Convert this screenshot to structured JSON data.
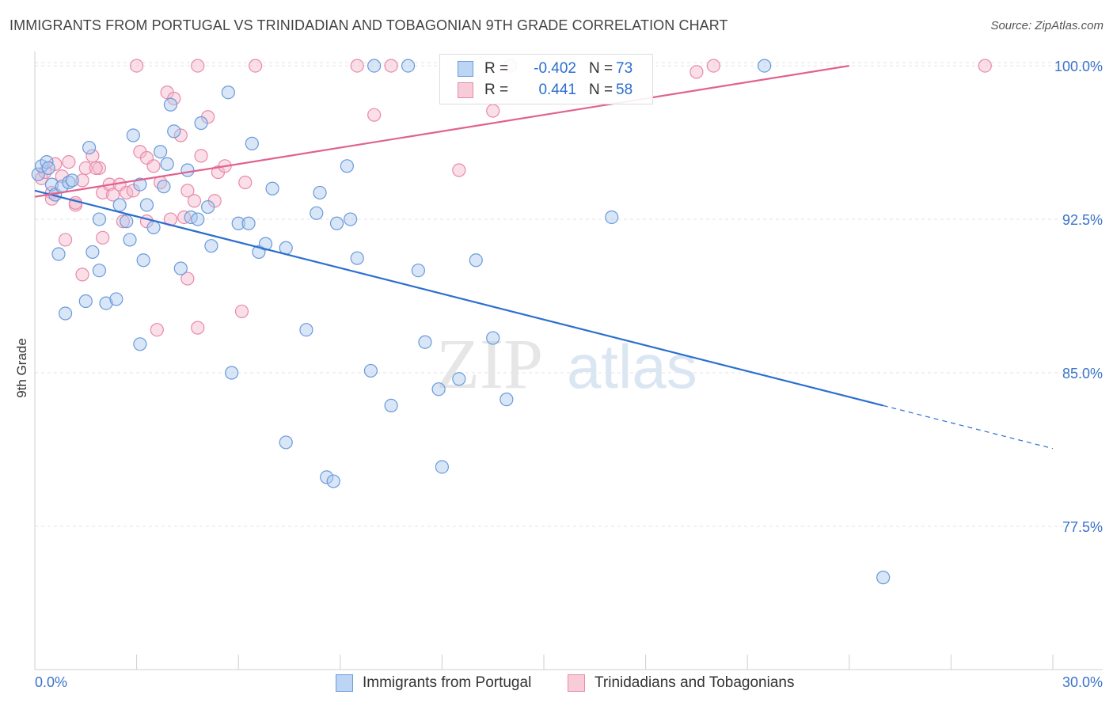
{
  "header": {
    "title": "IMMIGRANTS FROM PORTUGAL VS TRINIDADIAN AND TOBAGONIAN 9TH GRADE CORRELATION CHART",
    "source": "Source: ZipAtlas.com"
  },
  "watermark": {
    "zip": "ZIP",
    "atlas": "atlas"
  },
  "legend_top": {
    "r_label": "R =",
    "n_label": "N =",
    "series": [
      {
        "r": "-0.402",
        "n": "73"
      },
      {
        "r": "0.441",
        "n": "58"
      }
    ]
  },
  "legend_bottom": [
    {
      "label": "Immigrants from Portugal"
    },
    {
      "label": "Trinidadians and Tobagonians"
    }
  ],
  "colors": {
    "blue_fill": "#a8c8f0",
    "blue_stroke": "#6a9ad8",
    "blue_line": "#2b6fcf",
    "pink_fill": "#f5b7cb",
    "pink_stroke": "#e88aa8",
    "pink_line": "#e0628f",
    "axis_text": "#3b73c8"
  },
  "chart_data": {
    "type": "scatter",
    "title": "IMMIGRANTS FROM PORTUGAL VS TRINIDADIAN AND TOBAGONIAN 9TH GRADE CORRELATION CHART",
    "xlabel": "",
    "ylabel": "9th Grade",
    "xlim": [
      0,
      30
    ],
    "ylim": [
      70.5,
      100.7
    ],
    "x_tick_labels": [
      "0.0%",
      "30.0%"
    ],
    "y_ticks": [
      {
        "value": 100.0,
        "label": "100.0%"
      },
      {
        "value": 92.5,
        "label": "92.5%"
      },
      {
        "value": 85.0,
        "label": "85.0%"
      },
      {
        "value": 77.5,
        "label": "77.5%"
      }
    ],
    "series": [
      {
        "name": "Immigrants from Portugal",
        "r": -0.402,
        "n": 73,
        "trend": {
          "x0": 0.0,
          "y0": 93.9,
          "x1": 25.0,
          "y1": 83.4,
          "dash_x1": 30.0,
          "dash_y1": 81.3
        },
        "points": [
          [
            0.1,
            94.7
          ],
          [
            0.2,
            95.1
          ],
          [
            0.35,
            95.3
          ],
          [
            0.5,
            94.2
          ],
          [
            0.6,
            93.7
          ],
          [
            0.8,
            94.1
          ],
          [
            1.0,
            94.3
          ],
          [
            1.1,
            94.4
          ],
          [
            1.6,
            96.0
          ],
          [
            1.9,
            92.5
          ],
          [
            2.5,
            93.2
          ],
          [
            2.7,
            92.4
          ],
          [
            2.8,
            91.5
          ],
          [
            2.9,
            96.6
          ],
          [
            3.1,
            94.2
          ],
          [
            3.3,
            93.2
          ],
          [
            3.5,
            92.1
          ],
          [
            3.7,
            95.8
          ],
          [
            3.8,
            94.1
          ],
          [
            3.9,
            95.2
          ],
          [
            4.0,
            98.1
          ],
          [
            4.1,
            96.8
          ],
          [
            4.3,
            90.1
          ],
          [
            4.5,
            94.9
          ],
          [
            4.6,
            92.6
          ],
          [
            4.8,
            92.5
          ],
          [
            4.9,
            97.2
          ],
          [
            5.1,
            93.1
          ],
          [
            5.2,
            91.2
          ],
          [
            5.7,
            98.7
          ],
          [
            5.8,
            85.0
          ],
          [
            6.0,
            92.3
          ],
          [
            6.3,
            92.3
          ],
          [
            6.4,
            96.2
          ],
          [
            6.6,
            90.9
          ],
          [
            6.8,
            91.3
          ],
          [
            7.0,
            94.0
          ],
          [
            7.4,
            81.6
          ],
          [
            7.4,
            91.1
          ],
          [
            8.0,
            87.1
          ],
          [
            8.3,
            92.8
          ],
          [
            8.4,
            93.8
          ],
          [
            8.6,
            79.9
          ],
          [
            8.8,
            79.7
          ],
          [
            8.9,
            92.3
          ],
          [
            9.2,
            95.1
          ],
          [
            9.3,
            92.5
          ],
          [
            9.5,
            90.6
          ],
          [
            9.9,
            85.1
          ],
          [
            10.0,
            100.0
          ],
          [
            10.5,
            83.4
          ],
          [
            11.0,
            100.0
          ],
          [
            11.3,
            90.0
          ],
          [
            11.5,
            86.5
          ],
          [
            11.9,
            84.2
          ],
          [
            12.0,
            80.4
          ],
          [
            12.5,
            84.7
          ],
          [
            13.0,
            90.5
          ],
          [
            13.5,
            86.7
          ],
          [
            13.9,
            83.7
          ],
          [
            17.0,
            92.6
          ],
          [
            21.5,
            100.0
          ],
          [
            25.0,
            75.0
          ],
          [
            1.5,
            88.5
          ],
          [
            0.7,
            90.8
          ],
          [
            1.7,
            90.9
          ],
          [
            0.4,
            95.0
          ],
          [
            0.9,
            87.9
          ],
          [
            1.9,
            90.0
          ],
          [
            2.1,
            88.4
          ],
          [
            3.1,
            86.4
          ],
          [
            3.2,
            90.5
          ],
          [
            2.4,
            88.6
          ]
        ]
      },
      {
        "name": "Trinidadians and Tobagonians",
        "r": 0.441,
        "n": 58,
        "trend": {
          "x0": 0.0,
          "y0": 93.6,
          "x1": 24.0,
          "y1": 100.0
        },
        "points": [
          [
            0.2,
            94.5
          ],
          [
            0.3,
            94.8
          ],
          [
            0.5,
            93.8
          ],
          [
            0.6,
            95.2
          ],
          [
            0.8,
            94.6
          ],
          [
            1.0,
            95.3
          ],
          [
            1.2,
            93.2
          ],
          [
            1.4,
            94.4
          ],
          [
            1.5,
            95.0
          ],
          [
            1.7,
            95.6
          ],
          [
            1.9,
            95.0
          ],
          [
            2.0,
            93.8
          ],
          [
            2.2,
            94.2
          ],
          [
            2.3,
            93.7
          ],
          [
            2.5,
            94.2
          ],
          [
            2.7,
            93.8
          ],
          [
            2.9,
            93.9
          ],
          [
            3.1,
            95.8
          ],
          [
            3.3,
            95.5
          ],
          [
            3.5,
            95.1
          ],
          [
            3.7,
            94.3
          ],
          [
            3.9,
            98.7
          ],
          [
            4.1,
            98.4
          ],
          [
            4.3,
            96.6
          ],
          [
            4.5,
            93.9
          ],
          [
            4.7,
            93.4
          ],
          [
            4.9,
            95.6
          ],
          [
            5.1,
            97.5
          ],
          [
            5.4,
            94.8
          ],
          [
            5.6,
            95.1
          ],
          [
            6.2,
            94.3
          ],
          [
            3.0,
            100.0
          ],
          [
            4.8,
            100.0
          ],
          [
            6.5,
            100.0
          ],
          [
            10.5,
            100.0
          ],
          [
            14.0,
            100.0
          ],
          [
            20.0,
            100.0
          ],
          [
            28.0,
            100.0
          ],
          [
            19.5,
            99.7
          ],
          [
            9.5,
            100.0
          ],
          [
            10.0,
            97.6
          ],
          [
            12.5,
            94.9
          ],
          [
            13.5,
            97.8
          ],
          [
            2.0,
            91.6
          ],
          [
            1.4,
            89.8
          ],
          [
            0.9,
            91.5
          ],
          [
            1.8,
            95.0
          ],
          [
            3.3,
            92.4
          ],
          [
            4.4,
            92.6
          ],
          [
            3.6,
            87.1
          ],
          [
            4.8,
            87.2
          ],
          [
            6.1,
            88.0
          ],
          [
            4.5,
            89.6
          ],
          [
            0.5,
            93.5
          ],
          [
            1.2,
            93.3
          ],
          [
            2.6,
            92.4
          ],
          [
            4.0,
            92.5
          ],
          [
            5.3,
            93.4
          ]
        ]
      }
    ]
  }
}
